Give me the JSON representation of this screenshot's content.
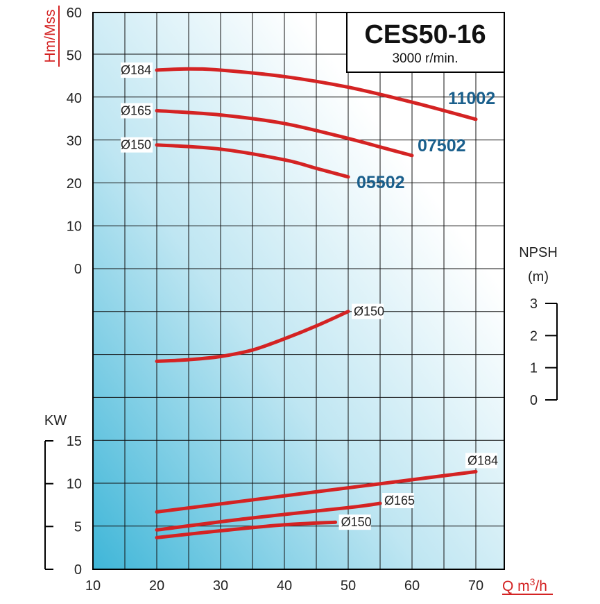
{
  "chart_data": {
    "type": "line",
    "title": "CES50-16",
    "subtitle": "3000 r/min.",
    "xlabel": "Q m³/h",
    "xlabel_base": "Q m",
    "xlabel_sup": "3",
    "xlabel_tail": "/h",
    "xlim": [
      10,
      72
    ],
    "x_ticks": [
      "10",
      "20",
      "30",
      "40",
      "50",
      "60",
      "70"
    ],
    "grid": true,
    "colors": {
      "curve": "#d42323",
      "model_label": "#1a5f8c",
      "axis_label": "#d42323",
      "text": "#222222"
    },
    "head": {
      "ylabel": "Hm/Mss",
      "ylim": [
        0,
        60
      ],
      "y_ticks": [
        "0",
        "10",
        "20",
        "30",
        "40",
        "50",
        "60"
      ],
      "series": [
        {
          "name": "Ø184",
          "model": "11002",
          "x": [
            20,
            25,
            30,
            40,
            50,
            60,
            70
          ],
          "y": [
            46.5,
            46.8,
            46.5,
            45.0,
            42.5,
            39.0,
            35.0
          ]
        },
        {
          "name": "Ø165",
          "model": "07502",
          "x": [
            20,
            30,
            40,
            50,
            55,
            60
          ],
          "y": [
            37.0,
            36.0,
            34.0,
            30.5,
            28.5,
            26.5
          ]
        },
        {
          "name": "Ø150",
          "model": "05502",
          "x": [
            20,
            30,
            40,
            45,
            50
          ],
          "y": [
            29.0,
            28.0,
            25.5,
            23.5,
            21.5
          ]
        }
      ]
    },
    "npsh": {
      "ylabel_line1": "NPSH",
      "ylabel_line2": "(m)",
      "ylim": [
        0,
        3
      ],
      "y_ticks": [
        "0",
        "1",
        "2",
        "3"
      ],
      "series": [
        {
          "name": "Ø150",
          "x": [
            20,
            25,
            30,
            35,
            40,
            45,
            50
          ],
          "y": [
            1.2,
            1.25,
            1.35,
            1.55,
            1.9,
            2.3,
            2.75
          ]
        }
      ]
    },
    "power": {
      "ylabel": "KW",
      "ylim": [
        0,
        15
      ],
      "y_ticks": [
        "0",
        "5",
        "10",
        "15"
      ],
      "series": [
        {
          "name": "Ø184",
          "x": [
            20,
            70
          ],
          "y": [
            6.7,
            11.4
          ]
        },
        {
          "name": "Ø165",
          "x": [
            20,
            35,
            50,
            55
          ],
          "y": [
            4.6,
            6.0,
            7.2,
            7.7
          ]
        },
        {
          "name": "Ø150",
          "x": [
            20,
            30,
            40,
            48
          ],
          "y": [
            3.7,
            4.5,
            5.2,
            5.5
          ]
        }
      ]
    }
  }
}
